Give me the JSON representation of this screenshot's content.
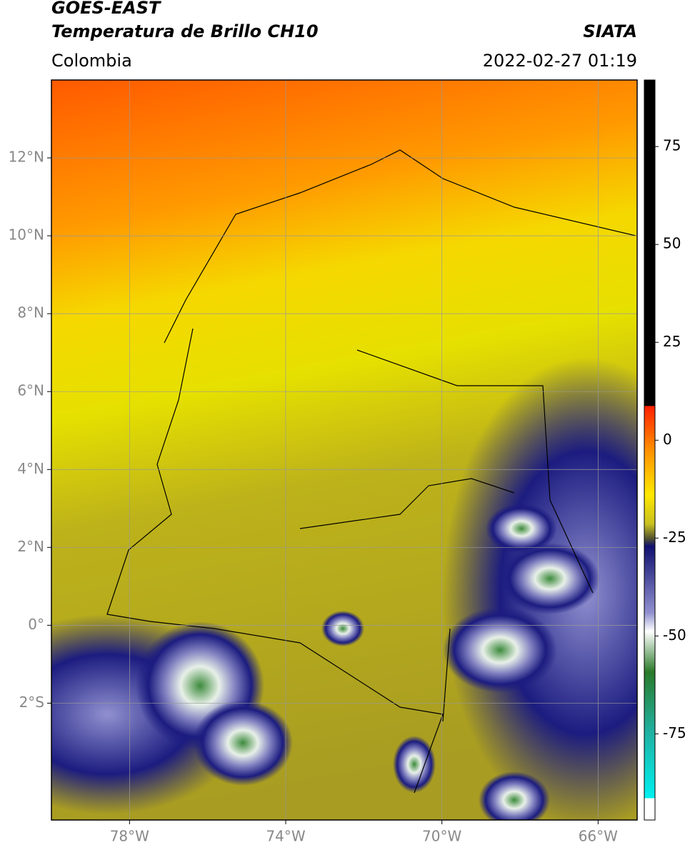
{
  "header": {
    "title_line1": "GOES-EAST",
    "title_line2": "Temperatura de Brillo CH10",
    "region": "Colombia",
    "source": "SIATA",
    "datetime": "2022-02-27 01:19"
  },
  "map": {
    "xlim": [
      -80,
      -65
    ],
    "ylim": [
      -5,
      14
    ],
    "xticks": [
      {
        "value": -78,
        "label": "78°W"
      },
      {
        "value": -74,
        "label": "74°W"
      },
      {
        "value": -70,
        "label": "70°W"
      },
      {
        "value": -66,
        "label": "66°W"
      }
    ],
    "yticks": [
      {
        "value": 12,
        "label": "12°N"
      },
      {
        "value": 10,
        "label": "10°N"
      },
      {
        "value": 8,
        "label": "8°N"
      },
      {
        "value": 6,
        "label": "6°N"
      },
      {
        "value": 4,
        "label": "4°N"
      },
      {
        "value": 2,
        "label": "2°N"
      },
      {
        "value": 0,
        "label": "0°"
      },
      {
        "value": -2,
        "label": "2°S"
      }
    ],
    "grid": true
  },
  "colorbar": {
    "lim": [
      -97,
      92
    ],
    "ticks": [
      75,
      50,
      25,
      0,
      -25,
      -50,
      -75
    ]
  }
}
